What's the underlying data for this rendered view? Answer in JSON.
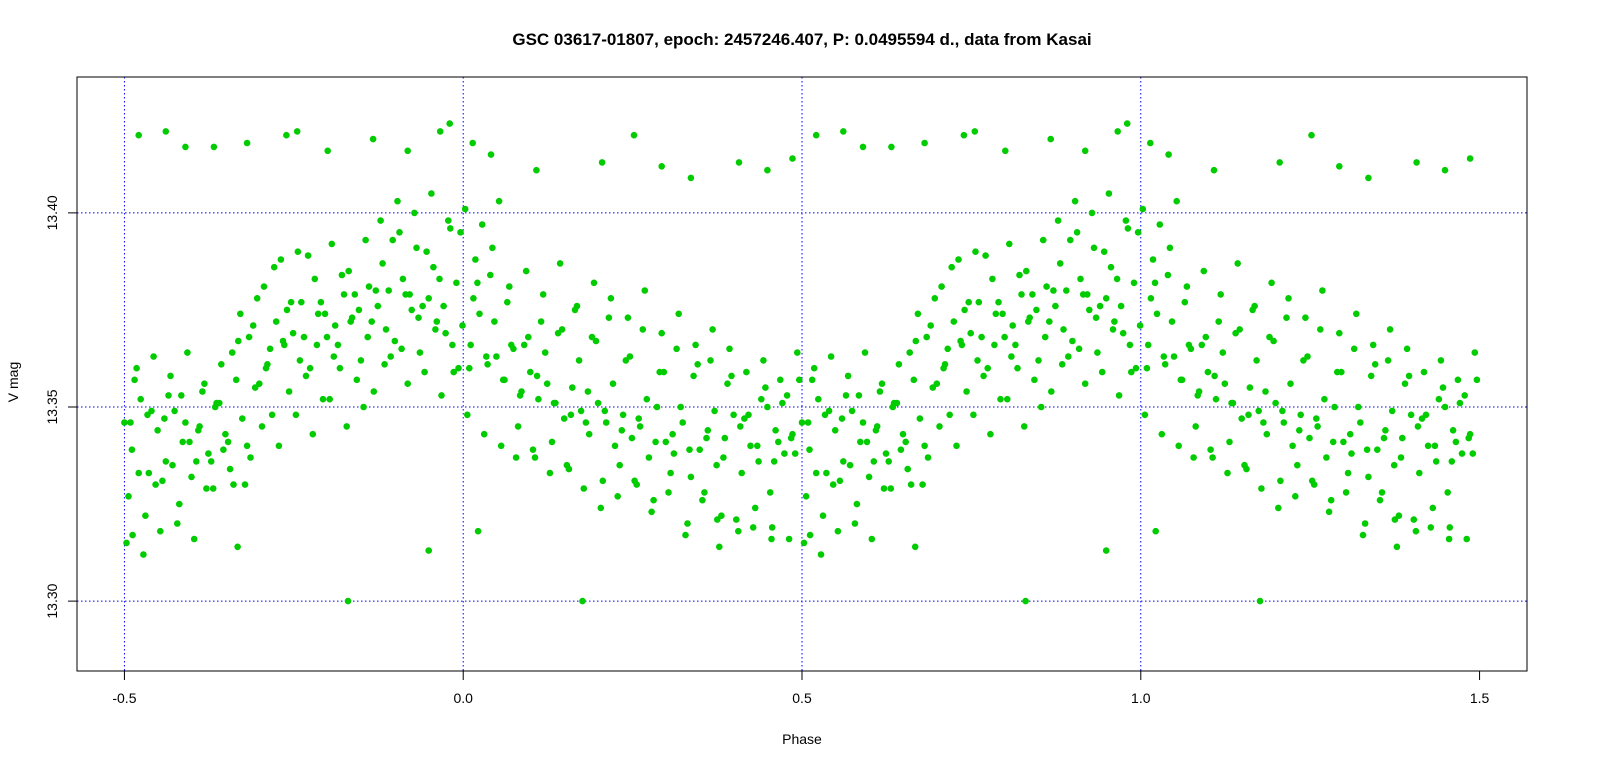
{
  "chart_data": {
    "type": "scatter",
    "title": "GSC 03617-01807, epoch: 2457246.407, P: 0.0495594 d., data from Kasai",
    "xlabel": "Phase",
    "ylabel": "V mag",
    "xlim": [
      -0.57,
      1.57
    ],
    "ylim": [
      13.435,
      13.282
    ],
    "y_reversed": true,
    "x_ticks": [
      -0.5,
      0.0,
      0.5,
      1.0,
      1.5
    ],
    "x_tick_labels": [
      "-0.5",
      "0.0",
      "0.5",
      "1.0",
      "1.5"
    ],
    "y_ticks": [
      13.3,
      13.35,
      13.4
    ],
    "y_tick_labels": [
      "13.30",
      "13.35",
      "13.40"
    ],
    "grid": true,
    "grid_x": [
      -0.5,
      0.0,
      0.5,
      1.0
    ],
    "grid_y": [
      13.3,
      13.35,
      13.4
    ],
    "colors": {
      "points": "#00cc00",
      "grid": "#0000ff",
      "axes": "#000000"
    },
    "series": [
      {
        "x": [
          0.0,
          0.011,
          0.024,
          0.036,
          0.049,
          0.061,
          0.074,
          0.086,
          0.099,
          0.111,
          0.124,
          0.136,
          0.149,
          0.161,
          0.174,
          0.186,
          0.199,
          0.211,
          0.224,
          0.236,
          0.249,
          0.261,
          0.274,
          0.286,
          0.299,
          0.311,
          0.324,
          0.336,
          0.349,
          0.361,
          0.374,
          0.386,
          0.399,
          0.411,
          0.424,
          0.436,
          0.449,
          0.461,
          0.474,
          0.486,
          0.499,
          0.511,
          0.524,
          0.536,
          0.549,
          0.561,
          0.574,
          0.586,
          0.599,
          0.611,
          0.624,
          0.636,
          0.649,
          0.661,
          0.674,
          0.686,
          0.699,
          0.711,
          0.724,
          0.736,
          0.749,
          0.761,
          0.774,
          0.786,
          0.799,
          0.811,
          0.824,
          0.836,
          0.849,
          0.861,
          0.874,
          0.886,
          0.899,
          0.911,
          0.924,
          0.936,
          0.949,
          0.961,
          0.974,
          0.986,
          0.006,
          0.018,
          0.031,
          0.043,
          0.056,
          0.068,
          0.081,
          0.093,
          0.106,
          0.118,
          0.131,
          0.143,
          0.156,
          0.168,
          0.181,
          0.193,
          0.206,
          0.218,
          0.231,
          0.243,
          0.256,
          0.268,
          0.281,
          0.293,
          0.306,
          0.318,
          0.331,
          0.343,
          0.356,
          0.368,
          0.381,
          0.393,
          0.406,
          0.418,
          0.431,
          0.443,
          0.456,
          0.468,
          0.481,
          0.493,
          0.506,
          0.518,
          0.531,
          0.543,
          0.556,
          0.568,
          0.581,
          0.593,
          0.606,
          0.618,
          0.631,
          0.643,
          0.656,
          0.668,
          0.681,
          0.693,
          0.706,
          0.718,
          0.731,
          0.743,
          0.756,
          0.768,
          0.781,
          0.793,
          0.806,
          0.818,
          0.831,
          0.843,
          0.856,
          0.868,
          0.881,
          0.893,
          0.906,
          0.918,
          0.931,
          0.943,
          0.956,
          0.968,
          0.981,
          0.993,
          0.003,
          0.015,
          0.028,
          0.04,
          0.053,
          0.065,
          0.078,
          0.09,
          0.103,
          0.115,
          0.128,
          0.14,
          0.153,
          0.165,
          0.178,
          0.19,
          0.203,
          0.215,
          0.228,
          0.24,
          0.253,
          0.265,
          0.278,
          0.29,
          0.303,
          0.315,
          0.328,
          0.34,
          0.353,
          0.365,
          0.378,
          0.39,
          0.403,
          0.415,
          0.428,
          0.44,
          0.453,
          0.465,
          0.478,
          0.49,
          0.503,
          0.515,
          0.528,
          0.54,
          0.553,
          0.565,
          0.578,
          0.59,
          0.603,
          0.615,
          0.628,
          0.64,
          0.653,
          0.665,
          0.678,
          0.69,
          0.703,
          0.715,
          0.728,
          0.74,
          0.753,
          0.765,
          0.778,
          0.79,
          0.803,
          0.815,
          0.828,
          0.84,
          0.853,
          0.865,
          0.878,
          0.89,
          0.903,
          0.915,
          0.928,
          0.94,
          0.953,
          0.965,
          0.978,
          0.99,
          0.009,
          0.021,
          0.034,
          0.046,
          0.059,
          0.071,
          0.084,
          0.096,
          0.109,
          0.121,
          0.134,
          0.146,
          0.159,
          0.171,
          0.184,
          0.196,
          0.209,
          0.221,
          0.234,
          0.246,
          0.259,
          0.271,
          0.284,
          0.296,
          0.309,
          0.321,
          0.334,
          0.346,
          0.359,
          0.371,
          0.384,
          0.396,
          0.409,
          0.421,
          0.434,
          0.446,
          0.459,
          0.471,
          0.484,
          0.496,
          0.509,
          0.521,
          0.534,
          0.546,
          0.559,
          0.571,
          0.584,
          0.596,
          0.609,
          0.621,
          0.634,
          0.646,
          0.659,
          0.671,
          0.684,
          0.696,
          0.709,
          0.721,
          0.734,
          0.746,
          0.759,
          0.771,
          0.784,
          0.796,
          0.809,
          0.821,
          0.834,
          0.846,
          0.859,
          0.871,
          0.884,
          0.896,
          0.909,
          0.921,
          0.934,
          0.946,
          0.959,
          0.971,
          0.984,
          0.996,
          0.33,
          0.676,
          0.449,
          0.167,
          0.09,
          0.012,
          0.955,
          0.875,
          0.255,
          0.514,
          0.522,
          0.466,
          0.418,
          0.367,
          0.3,
          0.239,
          0.181,
          0.132,
          0.061,
          0.021,
          0.48,
          0.541,
          0.608,
          0.705,
          0.752,
          0.793,
          0.836,
          0.907,
          0.949,
          0.986
        ],
        "y": [
          13.346,
          13.339,
          13.352,
          13.333,
          13.344,
          13.336,
          13.349,
          13.341,
          13.332,
          13.345,
          13.338,
          13.351,
          13.343,
          13.33,
          13.347,
          13.337,
          13.356,
          13.361,
          13.372,
          13.366,
          13.369,
          13.377,
          13.36,
          13.374,
          13.368,
          13.371,
          13.379,
          13.373,
          13.362,
          13.381,
          13.376,
          13.37,
          13.367,
          13.383,
          13.375,
          13.364,
          13.378,
          13.372,
          13.369,
          13.359,
          13.371,
          13.366,
          13.374,
          13.361,
          13.363,
          13.357,
          13.365,
          13.354,
          13.359,
          13.352,
          13.356,
          13.351,
          13.347,
          13.355,
          13.349,
          13.343,
          13.351,
          13.346,
          13.34,
          13.348,
          13.342,
          13.345,
          13.337,
          13.35,
          13.341,
          13.338,
          13.346,
          13.332,
          13.339,
          13.344,
          13.335,
          13.342,
          13.348,
          13.333,
          13.34,
          13.336,
          13.35,
          13.344,
          13.338,
          13.343,
          13.327,
          13.36,
          13.322,
          13.363,
          13.331,
          13.358,
          13.325,
          13.364,
          13.336,
          13.356,
          13.329,
          13.361,
          13.334,
          13.367,
          13.34,
          13.355,
          13.381,
          13.348,
          13.388,
          13.354,
          13.39,
          13.358,
          13.383,
          13.352,
          13.392,
          13.36,
          13.385,
          13.357,
          13.393,
          13.354,
          13.387,
          13.363,
          13.395,
          13.356,
          13.391,
          13.359,
          13.386,
          13.353,
          13.396,
          13.36,
          13.348,
          13.388,
          13.343,
          13.391,
          13.34,
          13.381,
          13.345,
          13.385,
          13.337,
          13.379,
          13.341,
          13.387,
          13.334,
          13.376,
          13.346,
          13.382,
          13.331,
          13.378,
          13.335,
          13.373,
          13.33,
          13.38,
          13.326,
          13.369,
          13.333,
          13.374,
          13.32,
          13.366,
          13.328,
          13.37,
          13.322,
          13.365,
          13.318,
          13.359,
          13.324,
          13.362,
          13.319,
          13.357,
          13.316,
          13.364,
          13.315,
          13.357,
          13.312,
          13.349,
          13.318,
          13.353,
          13.32,
          13.346,
          13.316,
          13.354,
          13.336,
          13.351,
          13.341,
          13.357,
          13.33,
          13.371,
          13.345,
          13.365,
          13.34,
          13.375,
          13.348,
          13.368,
          13.343,
          13.377,
          13.352,
          13.366,
          13.345,
          13.379,
          13.35,
          13.372,
          13.398,
          13.38,
          13.403,
          13.379,
          13.4,
          13.376,
          13.405,
          13.383,
          13.398,
          13.382,
          13.401,
          13.378,
          13.397,
          13.384,
          13.403,
          13.377,
          13.337,
          13.366,
          13.339,
          13.372,
          13.333,
          13.369,
          13.335,
          13.375,
          13.329,
          13.368,
          13.324,
          13.373,
          13.327,
          13.362,
          13.331,
          13.37,
          13.323,
          13.359,
          13.328,
          13.365,
          13.317,
          13.358,
          13.326,
          13.362,
          13.314,
          13.356,
          13.321,
          13.347,
          13.319,
          13.352,
          13.328,
          13.341,
          13.353,
          13.338,
          13.346,
          13.333,
          13.348,
          13.33,
          13.347,
          13.335,
          13.353,
          13.341,
          13.344,
          13.329,
          13.35,
          13.339,
          13.364,
          13.374,
          13.368,
          13.378,
          13.36,
          13.386,
          13.367,
          13.377,
          13.362,
          13.389,
          13.366,
          13.374,
          13.363,
          13.384,
          13.372,
          13.375,
          13.368,
          13.38,
          13.361,
          13.393,
          13.365,
          13.379,
          13.373,
          13.39,
          13.37,
          13.376,
          13.366,
          13.395,
          13.36,
          13.382,
          13.363,
          13.372,
          13.357,
          13.366,
          13.353,
          13.368,
          13.358,
          13.364,
          13.351,
          13.37,
          13.348,
          13.362,
          13.354,
          13.367,
          13.349,
          13.356,
          13.344,
          13.363,
          13.347,
          13.352,
          13.341,
          13.359,
          13.343,
          13.35,
          13.339,
          13.361,
          13.342,
          13.349,
          13.337,
          13.358,
          13.345,
          13.348,
          13.34,
          13.355,
          13.336,
          13.351,
          13.342,
          13.357,
          13.3,
          13.3,
          13.313,
          13.314,
          13.417,
          13.317,
          13.316,
          13.321,
          13.421,
          13.418,
          13.318,
          13.421,
          13.416,
          13.419,
          13.416,
          13.42,
          13.418,
          13.417,
          13.421,
          13.42,
          13.423,
          13.415,
          13.411,
          13.413,
          13.42,
          13.412,
          13.409,
          13.413,
          13.411,
          13.414
        ]
      }
    ]
  }
}
